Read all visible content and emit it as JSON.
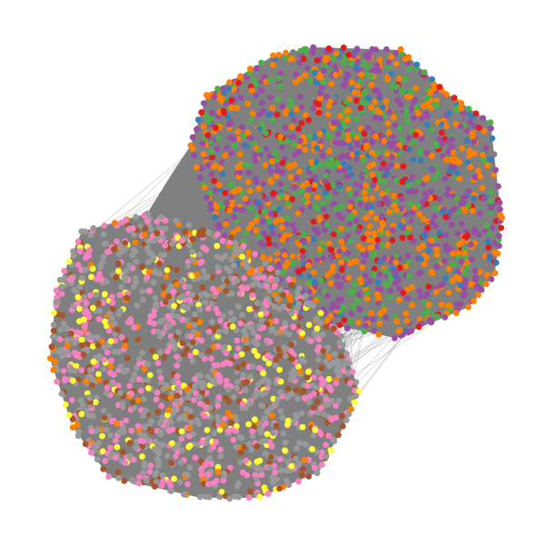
{
  "figure": {
    "type": "network-graph",
    "background": "#ffffff",
    "edge_color": "#808080",
    "node_border": "none"
  },
  "clusters": [
    {
      "name": "upper-right-community",
      "palette": [
        "#984ea3",
        "#ff7f00",
        "#4daf4a",
        "#e41a1c",
        "#377eb8",
        "#808080"
      ],
      "weights": [
        0.34,
        0.31,
        0.16,
        0.08,
        0.07,
        0.04
      ]
    },
    {
      "name": "lower-left-community",
      "palette": [
        "#999999",
        "#f781bf",
        "#a65628",
        "#ffff33",
        "#ff7f00"
      ],
      "weights": [
        0.45,
        0.27,
        0.14,
        0.09,
        0.05
      ]
    }
  ]
}
